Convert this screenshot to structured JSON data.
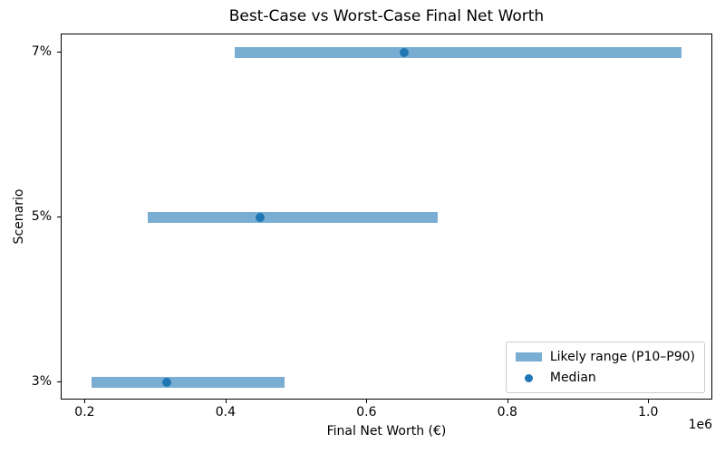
{
  "chart_data": {
    "type": "bar",
    "orientation": "horizontal-range",
    "title": "Best-Case vs Worst-Case Final Net Worth",
    "xlabel": "Final Net Worth (€)",
    "ylabel": "Scenario",
    "x_axis": {
      "xlim": [
        166000,
        1091000
      ],
      "ticks": [
        200000,
        400000,
        600000,
        800000,
        1000000
      ],
      "tick_labels": [
        "0.2",
        "0.4",
        "0.6",
        "0.8",
        "1.0"
      ],
      "offset_label": "1e6"
    },
    "rows": [
      {
        "scenario": "7%",
        "p10": 412000,
        "median": 654000,
        "p90": 1049000
      },
      {
        "scenario": "5%",
        "p10": 289000,
        "median": 449000,
        "p90": 701000
      },
      {
        "scenario": "3%",
        "p10": 208000,
        "median": 316000,
        "p90": 483000
      }
    ],
    "legend": {
      "position": "lower right",
      "items": [
        {
          "label": "Likely range (P10–P90)",
          "marker": "bar"
        },
        {
          "label": "Median",
          "marker": "dot"
        }
      ]
    },
    "colors": {
      "range_bar": "#79add2",
      "median_dot": "#1f77b4",
      "spine": "#000000"
    },
    "grid": false
  }
}
